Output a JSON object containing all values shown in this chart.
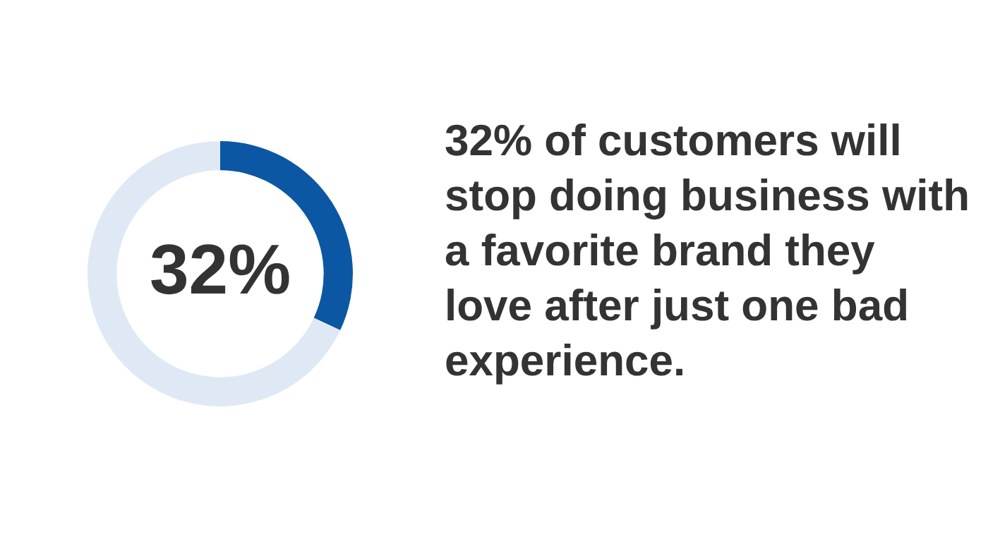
{
  "chart_data": {
    "type": "donut",
    "title": "32% of customers will stop doing business with a favorite brand they love after just one bad experience.",
    "categories": [
      null,
      null
    ],
    "values": [
      32,
      68
    ],
    "colors": [
      "#0b57a4",
      "#dfe9f5"
    ],
    "value_labels": [
      "32%",
      null
    ],
    "legend": false
  }
}
